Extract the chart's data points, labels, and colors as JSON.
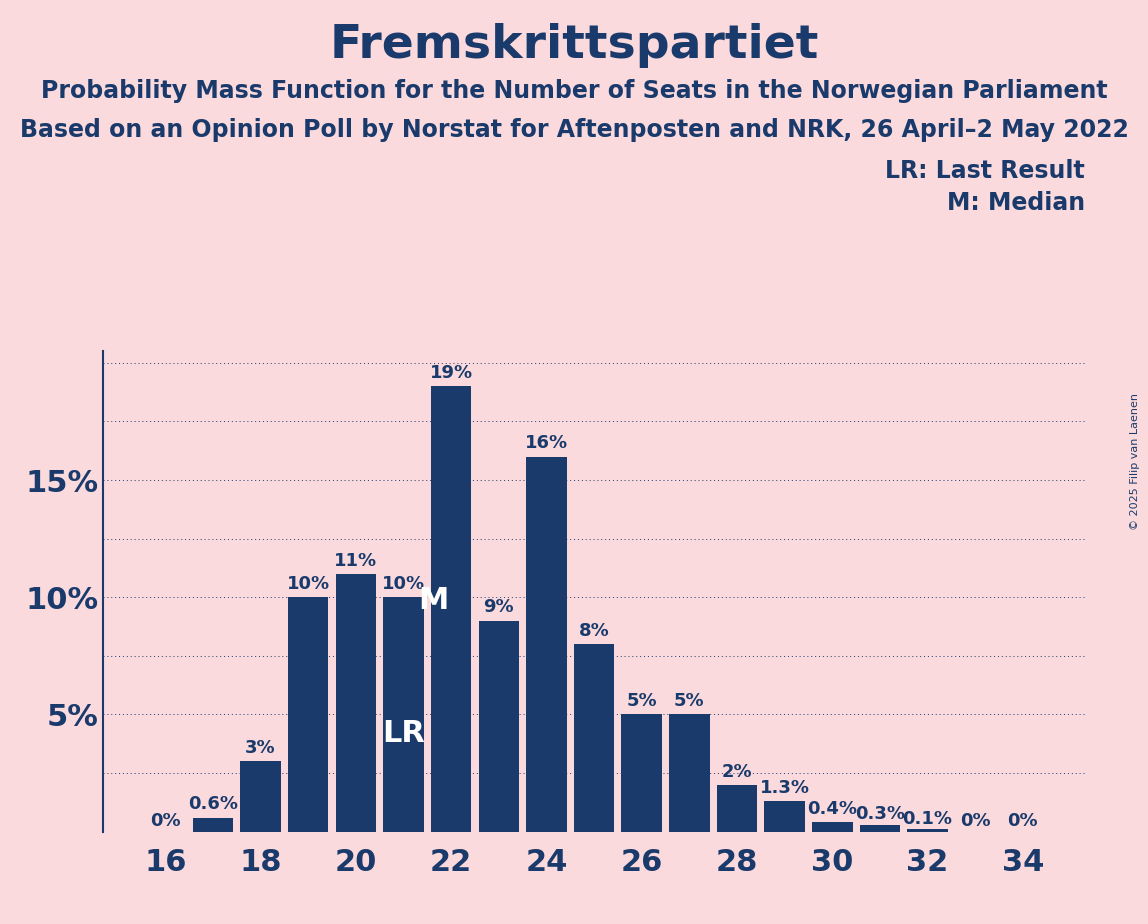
{
  "title": "Fremskrittspartiet",
  "subtitle1": "Probability Mass Function for the Number of Seats in the Norwegian Parliament",
  "subtitle2": "Based on an Opinion Poll by Norstat for Aftenposten and NRK, 26 April–2 May 2022",
  "copyright": "© 2025 Filip van Laenen",
  "legend1": "LR: Last Result",
  "legend2": "M: Median",
  "seats": [
    16,
    17,
    18,
    19,
    20,
    21,
    22,
    23,
    24,
    25,
    26,
    27,
    28,
    29,
    30,
    31,
    32,
    33,
    34
  ],
  "probabilities": [
    0.0,
    0.006,
    0.03,
    0.1,
    0.11,
    0.1,
    0.19,
    0.09,
    0.16,
    0.08,
    0.05,
    0.05,
    0.02,
    0.013,
    0.004,
    0.003,
    0.001,
    0.0,
    0.0
  ],
  "bar_labels": [
    "0%",
    "0.6%",
    "3%",
    "10%",
    "11%",
    "10%",
    "19%",
    "9%",
    "16%",
    "8%",
    "5%",
    "5%",
    "2%",
    "1.3%",
    "0.4%",
    "0.3%",
    "0.1%",
    "0%",
    "0%"
  ],
  "bar_color": "#1a3a6b",
  "background_color": "#fadadd",
  "text_color": "#1a3a6b",
  "lr_seat": 21,
  "median_seat": 22,
  "xtick_seats": [
    16,
    18,
    20,
    22,
    24,
    26,
    28,
    30,
    32,
    34
  ],
  "title_fontsize": 34,
  "subtitle_fontsize": 17,
  "bar_label_fontsize": 13,
  "axis_label_fontsize": 22,
  "legend_fontsize": 17,
  "copyright_fontsize": 8,
  "lr_label_fontsize": 22,
  "m_label_fontsize": 22
}
